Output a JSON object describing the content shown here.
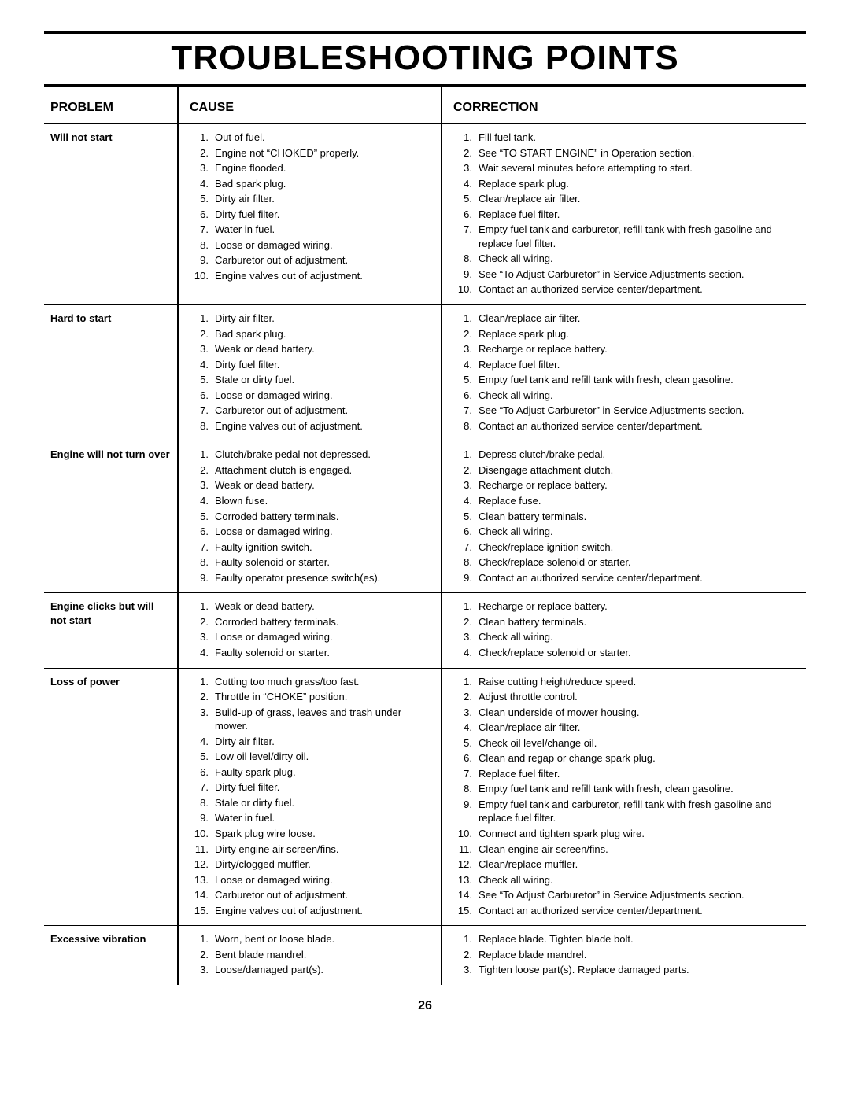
{
  "title": "TROUBLESHOOTING POINTS",
  "page_number": "26",
  "headers": {
    "problem": "PROBLEM",
    "cause": "CAUSE",
    "correction": "CORRECTION"
  },
  "rows": [
    {
      "problem": "Will not start",
      "causes": [
        "Out of fuel.",
        "Engine not “CHOKED” properly.",
        "Engine flooded.",
        "Bad spark plug.",
        "Dirty air filter.",
        "Dirty fuel filter.",
        "Water in fuel.",
        "Loose or damaged wiring.",
        "Carburetor out of adjustment.",
        "Engine valves out of adjustment."
      ],
      "corrections": [
        "Fill fuel tank.",
        "See “TO START ENGINE” in Operation section.",
        "Wait several minutes before attempting to start.",
        "Replace spark plug.",
        "Clean/replace air filter.",
        "Replace fuel filter.",
        "Empty fuel tank and carburetor, refill tank with fresh gasoline and replace fuel filter.",
        "Check all wiring.",
        "See “To Adjust Carburetor” in Service Adjustments section.",
        "Contact an authorized service center/department."
      ]
    },
    {
      "problem": "Hard to start",
      "causes": [
        "Dirty air filter.",
        "Bad spark plug.",
        "Weak or dead battery.",
        "Dirty fuel filter.",
        "Stale or dirty fuel.",
        "Loose or damaged wiring.",
        "Carburetor out of adjustment.",
        "Engine valves out of adjustment."
      ],
      "corrections": [
        "Clean/replace air filter.",
        "Replace spark plug.",
        "Recharge or replace battery.",
        "Replace fuel filter.",
        "Empty fuel tank and refill tank with fresh, clean gasoline.",
        "Check all wiring.",
        "See “To Adjust Carburetor” in Service Adjustments section.",
        "Contact an authorized service center/department."
      ]
    },
    {
      "problem": "Engine will not turn over",
      "causes": [
        "Clutch/brake pedal not depressed.",
        "Attachment clutch is engaged.",
        "Weak or dead battery.",
        "Blown fuse.",
        "Corroded battery terminals.",
        "Loose or damaged wiring.",
        "Faulty ignition switch.",
        "Faulty solenoid or starter.",
        "Faulty operator presence switch(es)."
      ],
      "corrections": [
        "Depress clutch/brake pedal.",
        "Disengage attachment clutch.",
        "Recharge or replace battery.",
        "Replace fuse.",
        "Clean battery terminals.",
        "Check all wiring.",
        "Check/replace ignition switch.",
        "Check/replace solenoid or starter.",
        "Contact an authorized service center/department."
      ]
    },
    {
      "problem": "Engine clicks but will not start",
      "causes": [
        "Weak or dead battery.",
        "Corroded battery terminals.",
        "Loose or damaged wiring.",
        "Faulty solenoid or starter."
      ],
      "corrections": [
        "Recharge or replace battery.",
        "Clean battery terminals.",
        "Check all wiring.",
        "Check/replace solenoid or starter."
      ]
    },
    {
      "problem": "Loss of power",
      "causes": [
        "Cutting too much grass/too fast.",
        "Throttle in “CHOKE” position.",
        "Build-up of grass, leaves and trash under mower.",
        "Dirty air filter.",
        "Low oil level/dirty oil.",
        "Faulty spark plug.",
        "Dirty fuel filter.",
        "Stale or dirty fuel.",
        "Water in fuel.",
        "Spark plug wire loose.",
        "Dirty engine air screen/fins.",
        "Dirty/clogged muffler.",
        "Loose or damaged wiring.",
        "Carburetor out of adjustment.",
        "Engine valves out of adjustment."
      ],
      "corrections": [
        "Raise cutting height/reduce speed.",
        "Adjust throttle control.",
        "Clean underside of mower housing.",
        "Clean/replace air filter.",
        "Check oil level/change oil.",
        "Clean and regap or change spark plug.",
        "Replace fuel filter.",
        "Empty fuel tank and refill tank with fresh, clean gasoline.",
        "Empty fuel tank and carburetor, refill tank with fresh gasoline and replace fuel filter.",
        "Connect and tighten spark plug wire.",
        "Clean engine air screen/fins.",
        "Clean/replace muffler.",
        "Check all wiring.",
        "See “To Adjust Carburetor” in Service Adjustments section.",
        "Contact an authorized service center/department."
      ]
    },
    {
      "problem": "Excessive vibration",
      "causes": [
        "Worn, bent or loose blade.",
        "Bent blade mandrel.",
        "Loose/damaged part(s)."
      ],
      "corrections": [
        "Replace blade.  Tighten blade bolt.",
        "Replace blade mandrel.",
        "Tighten loose part(s).  Replace damaged parts."
      ]
    }
  ]
}
